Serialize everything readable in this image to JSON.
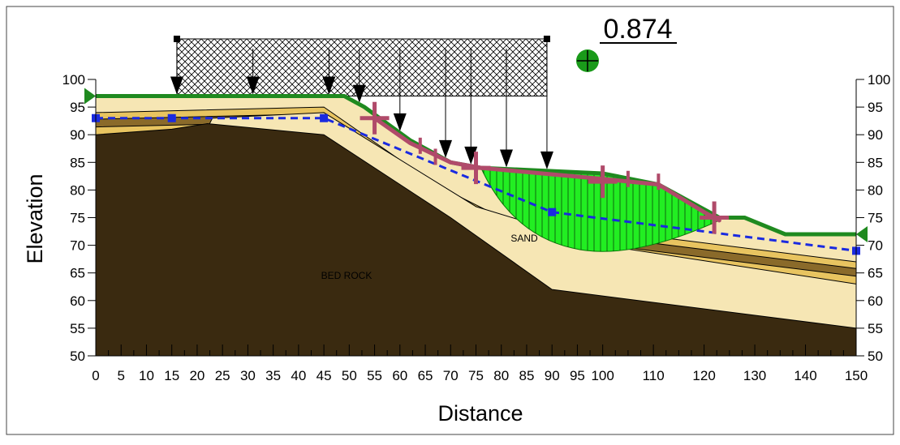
{
  "factor_of_safety": "0.874",
  "axes": {
    "x_title": "Distance",
    "y_title": "Elevation",
    "x_tick_labels": [
      "0",
      "5",
      "10",
      "15",
      "20",
      "25",
      "30",
      "35",
      "40",
      "45",
      "50",
      "55",
      "60",
      "65",
      "70",
      "75",
      "80",
      "85",
      "90",
      "95",
      "100",
      "110",
      "120",
      "130",
      "140",
      "150"
    ],
    "x_tick_values": [
      0,
      5,
      10,
      15,
      20,
      25,
      30,
      35,
      40,
      45,
      50,
      55,
      60,
      65,
      70,
      75,
      80,
      85,
      90,
      95,
      100,
      110,
      120,
      130,
      140,
      150
    ],
    "y_tick_labels": [
      "50",
      "55",
      "60",
      "65",
      "70",
      "75",
      "80",
      "85",
      "90",
      "95",
      "100"
    ],
    "y_tick_values": [
      50,
      55,
      60,
      65,
      70,
      75,
      80,
      85,
      90,
      95,
      100
    ]
  },
  "materials": {
    "bedrock_label": "BED ROCK",
    "sand_label": "SAND"
  },
  "colors": {
    "bedrock": "#3a2a10",
    "light_sand": "#f6e6b4",
    "mid_sand": "#e8c460",
    "dark_layer": "#8a6a2a",
    "ground_line": "#1f8a1f",
    "slip_mass": "#22ee22",
    "water_table": "#1a2ae0",
    "anchor": "#b04a6a"
  },
  "chart_data": {
    "type": "slope-stability-cross-section",
    "xlim": [
      0,
      150
    ],
    "ylim": [
      50,
      100
    ],
    "ground_surface": [
      [
        0,
        97
      ],
      [
        49,
        97
      ],
      [
        53,
        95
      ],
      [
        62,
        89
      ],
      [
        70,
        85
      ],
      [
        76,
        84
      ],
      [
        100,
        83
      ],
      [
        111,
        81
      ],
      [
        123,
        75
      ],
      [
        128,
        75
      ],
      [
        136,
        72
      ],
      [
        150,
        72
      ]
    ],
    "water_table": [
      [
        0,
        93
      ],
      [
        15,
        93
      ],
      [
        45,
        93
      ],
      [
        90,
        76
      ],
      [
        150,
        69
      ]
    ],
    "surcharge_load": {
      "x_start": 16,
      "x_end": 89,
      "arrows_x": [
        16,
        31,
        46,
        52,
        60,
        69,
        74,
        81,
        89
      ]
    },
    "critical_slip_surface_fos": 0.874,
    "layers": [
      {
        "name": "light-sand-top",
        "top": [
          [
            0,
            97
          ],
          [
            49,
            97
          ],
          [
            53,
            95
          ],
          [
            62,
            89
          ],
          [
            70,
            85
          ],
          [
            76,
            84
          ],
          [
            100,
            83
          ],
          [
            111,
            81
          ],
          [
            123,
            75
          ],
          [
            128,
            75
          ],
          [
            136,
            72
          ],
          [
            150,
            72
          ]
        ]
      },
      {
        "name": "light-sand-upper",
        "top": [
          [
            0,
            94
          ],
          [
            45,
            95
          ],
          [
            67,
            81
          ],
          [
            80,
            75
          ],
          [
            150,
            67
          ]
        ]
      },
      {
        "name": "mid-sand",
        "top": [
          [
            23,
            93
          ],
          [
            45,
            94
          ],
          [
            75,
            77
          ],
          [
            100,
            70
          ],
          [
            150,
            63
          ]
        ]
      },
      {
        "name": "bedrock",
        "top": [
          [
            0,
            90
          ],
          [
            15,
            91
          ],
          [
            22,
            92
          ],
          [
            45,
            90
          ],
          [
            70,
            75
          ],
          [
            90,
            62
          ],
          [
            150,
            55
          ]
        ]
      }
    ]
  }
}
